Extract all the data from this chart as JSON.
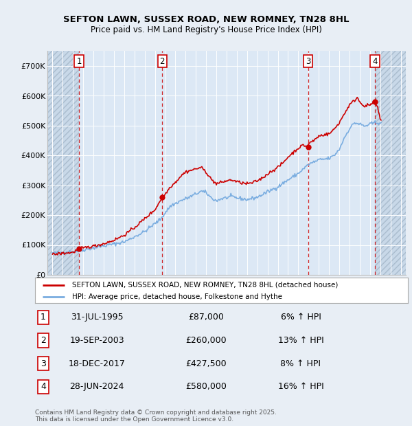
{
  "title": "SEFTON LAWN, SUSSEX ROAD, NEW ROMNEY, TN28 8HL",
  "subtitle": "Price paid vs. HM Land Registry's House Price Index (HPI)",
  "bg_color": "#e8eef5",
  "plot_bg_color": "#dce8f5",
  "hatch_bg_color": "#c8d8e8",
  "sale_label": "SEFTON LAWN, SUSSEX ROAD, NEW ROMNEY, TN28 8HL (detached house)",
  "hpi_label": "HPI: Average price, detached house, Folkestone and Hythe",
  "footer": "Contains HM Land Registry data © Crown copyright and database right 2025.\nThis data is licensed under the Open Government Licence v3.0.",
  "sales": [
    {
      "num": 1,
      "date": "31-JUL-1995",
      "price": 87000,
      "pct": "6%",
      "x": 1995.58
    },
    {
      "num": 2,
      "date": "19-SEP-2003",
      "price": 260000,
      "pct": "13%",
      "x": 2003.72
    },
    {
      "num": 3,
      "date": "18-DEC-2017",
      "price": 427500,
      "pct": "8%",
      "x": 2017.96
    },
    {
      "num": 4,
      "date": "28-JUN-2024",
      "price": 580000,
      "pct": "16%",
      "x": 2024.49
    }
  ],
  "ylim": [
    0,
    750000
  ],
  "yticks": [
    0,
    100000,
    200000,
    300000,
    400000,
    500000,
    600000,
    700000
  ],
  "ytick_labels": [
    "£0",
    "£100K",
    "£200K",
    "£300K",
    "£400K",
    "£500K",
    "£600K",
    "£700K"
  ],
  "xlim": [
    1992.5,
    2027.5
  ],
  "xticks": [
    1993,
    1994,
    1995,
    1996,
    1997,
    1998,
    1999,
    2000,
    2001,
    2002,
    2003,
    2004,
    2005,
    2006,
    2007,
    2008,
    2009,
    2010,
    2011,
    2012,
    2013,
    2014,
    2015,
    2016,
    2017,
    2018,
    2019,
    2020,
    2021,
    2022,
    2023,
    2024,
    2025,
    2026,
    2027
  ],
  "red_line_color": "#cc0000",
  "blue_line_color": "#7aade0",
  "marker_color": "#cc0000"
}
